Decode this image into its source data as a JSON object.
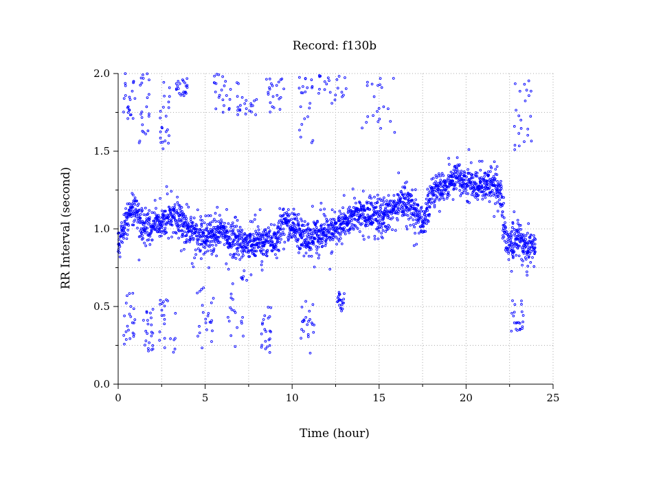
{
  "chart_data": {
    "type": "scatter",
    "title": "Record:  f130b",
    "xlabel": "Time (hour)",
    "ylabel": "RR Interval (second)",
    "xlim": [
      0,
      25
    ],
    "ylim": [
      0,
      2.0
    ],
    "x_ticks": [
      "0",
      "5",
      "10",
      "15",
      "20",
      "25"
    ],
    "y_ticks": [
      "0.0",
      "0.5",
      "1.0",
      "1.5",
      "2.0"
    ],
    "grid": true,
    "marker": "hollow-circle",
    "series_color": "#0000ff",
    "trend": {
      "x": [
        0.0,
        0.3,
        0.6,
        1.0,
        1.3,
        1.6,
        2.0,
        2.5,
        3.0,
        3.5,
        4.0,
        4.5,
        5.0,
        5.5,
        6.0,
        6.5,
        7.0,
        7.5,
        8.0,
        8.5,
        9.0,
        9.5,
        10.0,
        10.5,
        11.0,
        11.5,
        12.0,
        12.5,
        13.0,
        13.5,
        14.0,
        14.5,
        15.0,
        15.5,
        16.0,
        16.5,
        17.0,
        17.5,
        18.0,
        18.5,
        19.0,
        19.5,
        20.0,
        20.5,
        21.0,
        21.5,
        22.0,
        22.3,
        22.6,
        23.0,
        23.5,
        24.0
      ],
      "y": [
        0.88,
        1.0,
        1.1,
        1.15,
        1.05,
        1.0,
        1.02,
        1.05,
        1.08,
        1.06,
        1.0,
        0.97,
        0.95,
        0.96,
        0.98,
        0.93,
        0.92,
        0.9,
        0.92,
        0.93,
        0.92,
        1.05,
        1.02,
        0.97,
        0.92,
        0.97,
        0.98,
        0.99,
        1.05,
        1.08,
        1.1,
        1.08,
        1.07,
        1.1,
        1.15,
        1.18,
        1.12,
        1.05,
        1.2,
        1.25,
        1.28,
        1.35,
        1.3,
        1.28,
        1.25,
        1.3,
        1.22,
        0.92,
        0.88,
        0.95,
        0.88,
        0.92
      ]
    },
    "outlier_bursts": [
      {
        "x_range": [
          0.3,
          1.0
        ],
        "y_range": [
          1.7,
          2.0
        ]
      },
      {
        "x_range": [
          0.3,
          1.0
        ],
        "y_range": [
          0.25,
          0.6
        ]
      },
      {
        "x_range": [
          1.2,
          1.8
        ],
        "y_range": [
          1.55,
          2.0
        ]
      },
      {
        "x_range": [
          1.4,
          2.0
        ],
        "y_range": [
          0.2,
          0.5
        ]
      },
      {
        "x_range": [
          2.4,
          3.0
        ],
        "y_range": [
          1.5,
          1.95
        ]
      },
      {
        "x_range": [
          2.3,
          3.3
        ],
        "y_range": [
          0.2,
          0.6
        ]
      },
      {
        "x_range": [
          3.3,
          4.0
        ],
        "y_range": [
          1.85,
          1.98
        ]
      },
      {
        "x_range": [
          4.5,
          5.5
        ],
        "y_range": [
          0.22,
          0.65
        ]
      },
      {
        "x_range": [
          5.5,
          6.5
        ],
        "y_range": [
          1.75,
          2.0
        ]
      },
      {
        "x_range": [
          6.3,
          7.5
        ],
        "y_range": [
          0.16,
          0.72
        ]
      },
      {
        "x_range": [
          6.8,
          8.0
        ],
        "y_range": [
          1.7,
          1.98
        ]
      },
      {
        "x_range": [
          8.1,
          8.9
        ],
        "y_range": [
          0.2,
          0.5
        ]
      },
      {
        "x_range": [
          8.5,
          9.6
        ],
        "y_range": [
          1.75,
          1.98
        ]
      },
      {
        "x_range": [
          10.4,
          11.3
        ],
        "y_range": [
          1.5,
          1.98
        ]
      },
      {
        "x_range": [
          10.5,
          11.3
        ],
        "y_range": [
          0.15,
          0.55
        ]
      },
      {
        "x_range": [
          11.5,
          13.2
        ],
        "y_range": [
          1.8,
          2.0
        ]
      },
      {
        "x_range": [
          12.6,
          13.0
        ],
        "y_range": [
          0.45,
          0.6
        ]
      },
      {
        "x_range": [
          14.0,
          16.0
        ],
        "y_range": [
          1.6,
          1.98
        ]
      },
      {
        "x_range": [
          22.5,
          23.9
        ],
        "y_range": [
          1.45,
          1.98
        ]
      },
      {
        "x_range": [
          22.6,
          23.3
        ],
        "y_range": [
          0.3,
          0.55
        ]
      }
    ]
  }
}
